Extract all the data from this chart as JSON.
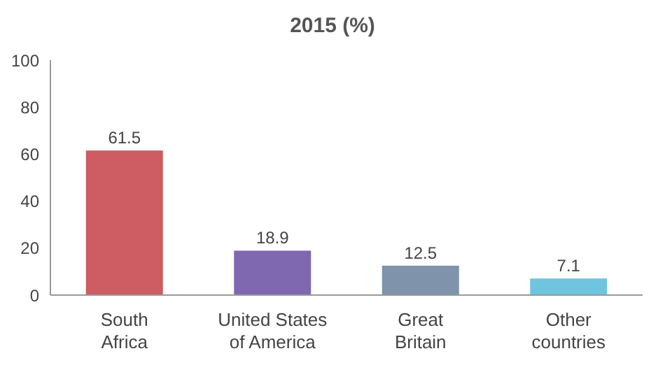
{
  "chart_data": {
    "type": "bar",
    "title": "2015 (%)",
    "categories": [
      "South Africa",
      "United States of America",
      "Great Britain",
      "Other countries"
    ],
    "values": [
      61.5,
      18.9,
      12.5,
      7.1
    ],
    "colors": [
      "#cd5c63",
      "#7f68b0",
      "#7f93aa",
      "#6fc5e0"
    ],
    "ylim": [
      0,
      100
    ],
    "yticks": [
      0,
      20,
      40,
      60,
      80,
      100
    ],
    "grid": false,
    "data_labels": true
  }
}
